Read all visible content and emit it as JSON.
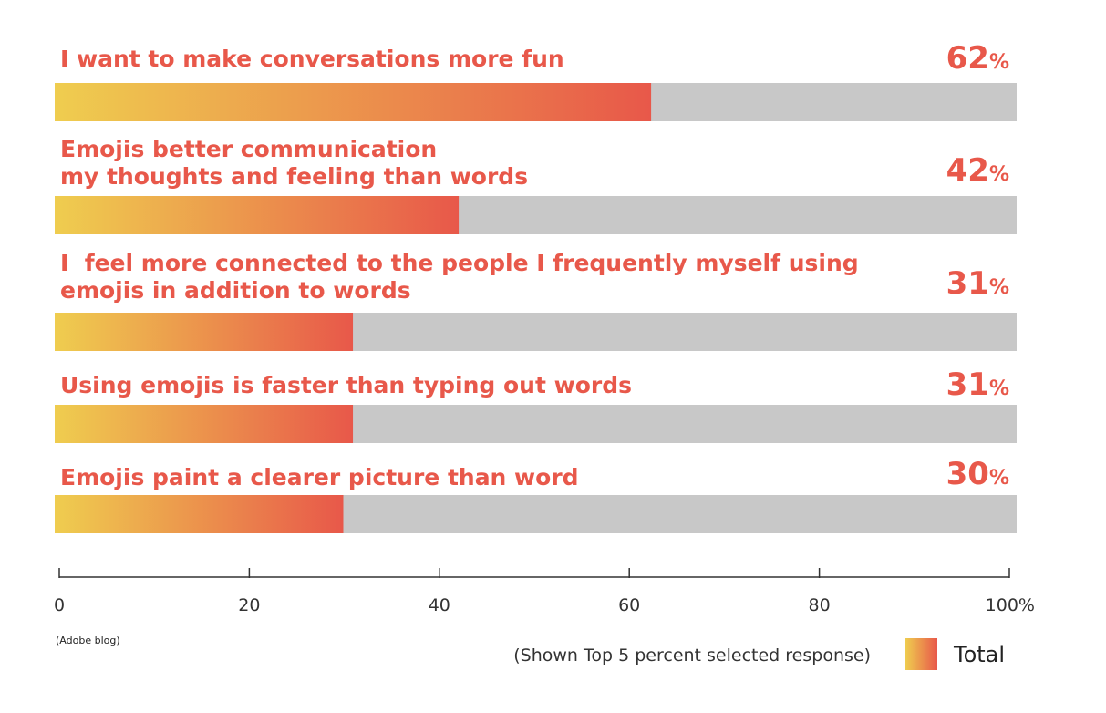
{
  "chart_data": {
    "type": "bar",
    "orientation": "horizontal",
    "categories": [
      [
        "I want to make conversations more fun"
      ],
      [
        "Emojis better communication",
        "my thoughts and feeling than words"
      ],
      [
        "I  feel more connected to the people I frequently myself using",
        "emojis in addition to words"
      ],
      [
        "Using emojis is faster than typing out words"
      ],
      [
        "Emojis paint a clearer picture than word"
      ]
    ],
    "series": [
      {
        "name": "Total",
        "values": [
          62,
          42,
          31,
          31,
          30
        ]
      }
    ],
    "value_suffix": "%",
    "xlim": [
      0,
      100
    ],
    "x_ticks": [
      "0",
      "20",
      "40",
      "60",
      "80",
      "100%"
    ],
    "source": "(Adobe blog)",
    "note": "(Shown Top 5 percent selected response)",
    "legend_label": "Total",
    "legend_position": "bottom-right",
    "colors": {
      "gradient_start": "#efcd4f",
      "gradient_end": "#e8584a",
      "track": "#c8c8c8",
      "label": "#e8584a",
      "axis": "#333333"
    }
  }
}
